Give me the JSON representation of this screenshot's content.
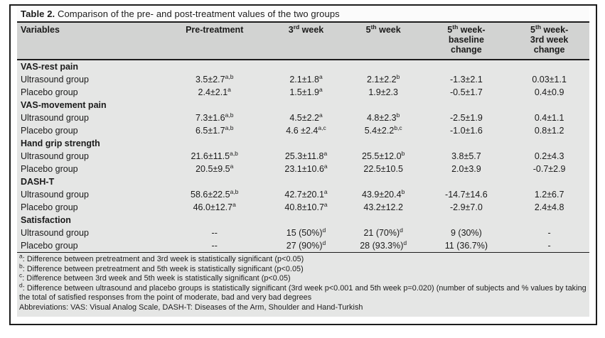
{
  "title": {
    "label": "Table 2.",
    "text": " Comparison of the pre- and post-treatment values of the two groups"
  },
  "colors": {
    "header_bg": "#d2d3d2",
    "body_bg": "#e5e6e5",
    "title_bg": "#fbfbfb",
    "rule": "#1c1c1c",
    "text": "#1b1b1b"
  },
  "table": {
    "headers": [
      {
        "text": "Variables"
      },
      {
        "text": "Pre-treatment"
      },
      {
        "text": "3^{rd} week"
      },
      {
        "text": "5^{th} week"
      },
      {
        "text": "5^{th} week-\nbaseline\nchange"
      },
      {
        "text": "5^{th} week-\n3rd week\nchange"
      }
    ],
    "rows": [
      {
        "type": "section",
        "label": "VAS-rest pain"
      },
      {
        "type": "data",
        "label": "Ultrasound group",
        "cells": [
          {
            "v": "3.5±2.7",
            "s": "a,b"
          },
          {
            "v": "2.1±1.8",
            "s": "a"
          },
          {
            "v": "2.1±2.2",
            "s": "b"
          },
          {
            "v": "-1.3±2.1"
          },
          {
            "v": "0.03±1.1"
          }
        ]
      },
      {
        "type": "data",
        "label": "Placebo group",
        "cells": [
          {
            "v": "2.4±2.1",
            "s": "a"
          },
          {
            "v": "1.5±1.9",
            "s": "a"
          },
          {
            "v": "1.9±2.3"
          },
          {
            "v": "-0.5±1.7"
          },
          {
            "v": "0.4±0.9"
          }
        ]
      },
      {
        "type": "section",
        "label": "VAS-movement pain"
      },
      {
        "type": "data",
        "label": "Ultrasound group",
        "cells": [
          {
            "v": "7.3±1.6",
            "s": "a,b"
          },
          {
            "v": "4.5±2.2",
            "s": "a"
          },
          {
            "v": "4.8±2.3",
            "s": "b"
          },
          {
            "v": "-2.5±1.9"
          },
          {
            "v": "0.4±1.1"
          }
        ]
      },
      {
        "type": "data",
        "label": "Placebo group",
        "cells": [
          {
            "v": "6.5±1.7",
            "s": "a,b"
          },
          {
            "v": "4.6 ±2.4",
            "s": "a,c"
          },
          {
            "v": "5.4±2.2",
            "s": "b,c"
          },
          {
            "v": "-1.0±1.6"
          },
          {
            "v": "0.8±1.2"
          }
        ]
      },
      {
        "type": "section",
        "label": "Hand grip strength"
      },
      {
        "type": "data",
        "label": "Ultrasound group",
        "cells": [
          {
            "v": "21.6±11.5",
            "s": "a,b"
          },
          {
            "v": "25.3±11.8",
            "s": "a"
          },
          {
            "v": "25.5±12.0",
            "s": "b"
          },
          {
            "v": "3.8±5.7"
          },
          {
            "v": "0.2±4.3"
          }
        ]
      },
      {
        "type": "data",
        "label": "Placebo group",
        "cells": [
          {
            "v": "20.5±9.5",
            "s": "a"
          },
          {
            "v": "23.1±10.6",
            "s": "a"
          },
          {
            "v": "22.5±10.5"
          },
          {
            "v": "2.0±3.9"
          },
          {
            "v": "-0.7±2.9"
          }
        ]
      },
      {
        "type": "section",
        "label": "DASH-T"
      },
      {
        "type": "data",
        "label": "Ultrasound group",
        "cells": [
          {
            "v": "58.6±22.5",
            "s": "a,b"
          },
          {
            "v": "42.7±20.1",
            "s": "a"
          },
          {
            "v": "43.9±20.4",
            "s": "b"
          },
          {
            "v": "-14.7±14.6"
          },
          {
            "v": "1.2±6.7"
          }
        ]
      },
      {
        "type": "data",
        "label": "Placebo group",
        "cells": [
          {
            "v": "46.0±12.7",
            "s": "a"
          },
          {
            "v": "40.8±10.7",
            "s": "a"
          },
          {
            "v": "43.2±12.2"
          },
          {
            "v": "-2.9±7.0"
          },
          {
            "v": "2.4±4.8"
          }
        ]
      },
      {
        "type": "section",
        "label": "Satisfaction"
      },
      {
        "type": "data",
        "label": "Ultrasound group",
        "cells": [
          {
            "v": "--"
          },
          {
            "v": "15 (50%)",
            "s": "d"
          },
          {
            "v": "21 (70%)",
            "s": "d"
          },
          {
            "v": "9 (30%)"
          },
          {
            "v": "-"
          }
        ]
      },
      {
        "type": "data",
        "label": "Placebo group",
        "cells": [
          {
            "v": "--"
          },
          {
            "v": "27 (90%)",
            "s": "d"
          },
          {
            "v": "28 (93.3%)",
            "s": "d"
          },
          {
            "v": "11 (36.7%)"
          },
          {
            "v": "-"
          }
        ]
      }
    ]
  },
  "footnotes": [
    {
      "sup": "a",
      "text": "Difference between pretreatment and 3rd week is statistically significant (p<0.05)"
    },
    {
      "sup": "b",
      "text": "Difference between pretreatment and 5th week is statistically significant (p<0.05)"
    },
    {
      "sup": "c",
      "text": "Difference between 3rd week and 5th week is statistically significant (p<0.05)"
    },
    {
      "sup": "d",
      "text": "Difference between ultrasound and placebo groups is statistically significant (3rd week p<0.001 and 5th week p=0.020) (number of subjects and % values by taking the total of satisfied responses from the point of moderate, bad and very bad degrees"
    },
    {
      "text": "Abbreviations: VAS: Visual Analog Scale, DASH-T: Diseases of the Arm, Shoulder and Hand-Turkish"
    }
  ]
}
